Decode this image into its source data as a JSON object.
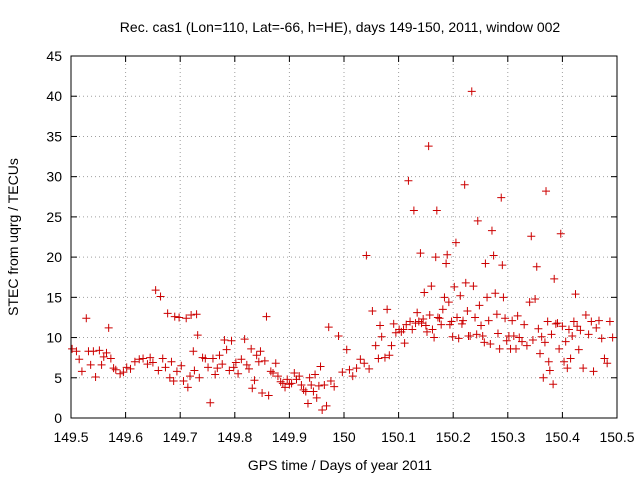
{
  "chart_data": {
    "type": "scatter",
    "title": "Rec. cas1 (Lon=110, Lat=-66, h=HE), days 149-150, 2011, window 002",
    "xlabel": "GPS time / Days of year 2011",
    "ylabel": "STEC from uqrg / TECUs",
    "xlim": [
      149.5,
      150.5
    ],
    "ylim": [
      0,
      45
    ],
    "x_ticks": [
      "149.5",
      "149.6",
      "149.7",
      "149.8",
      "149.9",
      "150",
      "150.1",
      "150.2",
      "150.3",
      "150.4",
      "150.5"
    ],
    "y_ticks": [
      "0",
      "5",
      "10",
      "15",
      "20",
      "25",
      "30",
      "35",
      "40",
      "45"
    ],
    "grid": true,
    "legend": "none",
    "marker": "plus",
    "color": "#cc0000",
    "points": [
      [
        149.502,
        8.6
      ],
      [
        149.51,
        8.3
      ],
      [
        149.515,
        7.3
      ],
      [
        149.52,
        5.8
      ],
      [
        149.528,
        12.4
      ],
      [
        149.532,
        8.3
      ],
      [
        149.536,
        6.6
      ],
      [
        149.541,
        8.3
      ],
      [
        149.545,
        5.1
      ],
      [
        149.552,
        8.4
      ],
      [
        149.556,
        6.6
      ],
      [
        149.56,
        7.6
      ],
      [
        149.565,
        8.1
      ],
      [
        149.569,
        11.2
      ],
      [
        149.573,
        7.4
      ],
      [
        149.578,
        6.2
      ],
      [
        149.582,
        6.0
      ],
      [
        149.59,
        5.5
      ],
      [
        149.596,
        5.7
      ],
      [
        149.602,
        6.3
      ],
      [
        149.609,
        6.1
      ],
      [
        149.617,
        7.0
      ],
      [
        149.625,
        7.3
      ],
      [
        149.632,
        7.4
      ],
      [
        149.64,
        6.7
      ],
      [
        149.645,
        7.5
      ],
      [
        149.65,
        6.9
      ],
      [
        149.655,
        15.9
      ],
      [
        149.66,
        5.9
      ],
      [
        149.664,
        15.1
      ],
      [
        149.668,
        7.4
      ],
      [
        149.673,
        6.3
      ],
      [
        149.677,
        13.0
      ],
      [
        149.681,
        5.0
      ],
      [
        149.684,
        7.0
      ],
      [
        149.688,
        4.6
      ],
      [
        149.69,
        12.6
      ],
      [
        149.694,
        5.8
      ],
      [
        149.698,
        12.5
      ],
      [
        149.702,
        6.5
      ],
      [
        149.706,
        4.6
      ],
      [
        149.711,
        12.4
      ],
      [
        149.714,
        3.8
      ],
      [
        149.718,
        5.2
      ],
      [
        149.72,
        12.8
      ],
      [
        149.724,
        8.3
      ],
      [
        149.726,
        5.9
      ],
      [
        149.73,
        12.9
      ],
      [
        149.732,
        10.3
      ],
      [
        149.735,
        5.0
      ],
      [
        149.741,
        7.5
      ],
      [
        149.746,
        7.4
      ],
      [
        149.751,
        6.3
      ],
      [
        149.755,
        1.9
      ],
      [
        149.76,
        7.4
      ],
      [
        149.764,
        5.4
      ],
      [
        149.768,
        6.2
      ],
      [
        149.772,
        7.8
      ],
      [
        149.777,
        6.7
      ],
      [
        149.781,
        9.7
      ],
      [
        149.785,
        8.5
      ],
      [
        149.79,
        5.9
      ],
      [
        149.794,
        9.6
      ],
      [
        149.798,
        6.3
      ],
      [
        149.802,
        6.9
      ],
      [
        149.806,
        5.5
      ],
      [
        149.812,
        7.3
      ],
      [
        149.818,
        9.8
      ],
      [
        149.822,
        6.6
      ],
      [
        149.826,
        6.1
      ],
      [
        149.83,
        8.6
      ],
      [
        149.832,
        3.7
      ],
      [
        149.836,
        4.7
      ],
      [
        149.84,
        7.8
      ],
      [
        149.844,
        7.0
      ],
      [
        149.847,
        8.3
      ],
      [
        149.85,
        3.1
      ],
      [
        149.855,
        7.1
      ],
      [
        149.858,
        12.6
      ],
      [
        149.862,
        2.8
      ],
      [
        149.866,
        5.8
      ],
      [
        149.87,
        5.6
      ],
      [
        149.875,
        6.8
      ],
      [
        149.879,
        5.2
      ],
      [
        149.884,
        4.5
      ],
      [
        149.888,
        4.3
      ],
      [
        149.892,
        3.8
      ],
      [
        149.896,
        4.8
      ],
      [
        149.9,
        4.2
      ],
      [
        149.904,
        4.3
      ],
      [
        149.909,
        5.6
      ],
      [
        149.913,
        4.8
      ],
      [
        149.918,
        5.2
      ],
      [
        149.922,
        4.1
      ],
      [
        149.926,
        3.5
      ],
      [
        149.93,
        3.3
      ],
      [
        149.934,
        1.8
      ],
      [
        149.937,
        5.0
      ],
      [
        149.94,
        4.1
      ],
      [
        149.944,
        3.3
      ],
      [
        149.947,
        5.4
      ],
      [
        149.95,
        2.5
      ],
      [
        149.954,
        4.0
      ],
      [
        149.957,
        6.4
      ],
      [
        149.96,
        1.0
      ],
      [
        149.964,
        4.1
      ],
      [
        149.968,
        1.5
      ],
      [
        149.972,
        11.3
      ],
      [
        149.976,
        4.6
      ],
      [
        149.982,
        3.9
      ],
      [
        149.99,
        10.2
      ],
      [
        149.997,
        5.7
      ],
      [
        150.005,
        8.5
      ],
      [
        150.01,
        6.0
      ],
      [
        150.016,
        5.2
      ],
      [
        150.023,
        6.2
      ],
      [
        150.03,
        7.3
      ],
      [
        150.037,
        6.8
      ],
      [
        150.041,
        20.2
      ],
      [
        150.046,
        6.1
      ],
      [
        150.052,
        13.3
      ],
      [
        150.058,
        9.0
      ],
      [
        150.063,
        7.4
      ],
      [
        150.066,
        11.5
      ],
      [
        150.069,
        10.1
      ],
      [
        150.075,
        7.5
      ],
      [
        150.079,
        13.5
      ],
      [
        150.083,
        7.8
      ],
      [
        150.087,
        9.0
      ],
      [
        150.091,
        11.7
      ],
      [
        150.095,
        10.6
      ],
      [
        150.101,
        11.0
      ],
      [
        150.105,
        10.7
      ],
      [
        150.109,
        11.0
      ],
      [
        150.111,
        9.3
      ],
      [
        150.114,
        11.6
      ],
      [
        150.118,
        29.5
      ],
      [
        150.121,
        12.0
      ],
      [
        150.125,
        11.0
      ],
      [
        150.128,
        25.8
      ],
      [
        150.131,
        11.8
      ],
      [
        150.134,
        13.1
      ],
      [
        150.137,
        12.0
      ],
      [
        150.14,
        20.5
      ],
      [
        150.142,
        11.8
      ],
      [
        150.145,
        12.3
      ],
      [
        150.147,
        15.6
      ],
      [
        150.15,
        11.5
      ],
      [
        150.152,
        10.7
      ],
      [
        150.155,
        33.8
      ],
      [
        150.157,
        12.8
      ],
      [
        150.16,
        16.4
      ],
      [
        150.162,
        11.0
      ],
      [
        150.165,
        10.0
      ],
      [
        150.168,
        20.0
      ],
      [
        150.17,
        25.8
      ],
      [
        150.172,
        12.5
      ],
      [
        150.175,
        12.4
      ],
      [
        150.178,
        11.6
      ],
      [
        150.181,
        13.5
      ],
      [
        150.184,
        15.0
      ],
      [
        150.187,
        19.2
      ],
      [
        150.189,
        20.3
      ],
      [
        150.192,
        14.4
      ],
      [
        150.194,
        11.6
      ],
      [
        150.197,
        12.0
      ],
      [
        150.199,
        10.1
      ],
      [
        150.202,
        16.3
      ],
      [
        150.205,
        21.8
      ],
      [
        150.207,
        12.5
      ],
      [
        150.21,
        9.9
      ],
      [
        150.213,
        15.2
      ],
      [
        150.216,
        11.7
      ],
      [
        150.218,
        12.1
      ],
      [
        150.221,
        29.0
      ],
      [
        150.223,
        16.8
      ],
      [
        150.226,
        13.3
      ],
      [
        150.228,
        10.2
      ],
      [
        150.231,
        10.2
      ],
      [
        150.234,
        40.6
      ],
      [
        150.237,
        16.4
      ],
      [
        150.24,
        12.5
      ],
      [
        150.243,
        10.4
      ],
      [
        150.245,
        24.5
      ],
      [
        150.248,
        14.0
      ],
      [
        150.251,
        11.5
      ],
      [
        150.254,
        10.2
      ],
      [
        150.257,
        9.4
      ],
      [
        150.259,
        19.2
      ],
      [
        150.262,
        15.0
      ],
      [
        150.265,
        12.1
      ],
      [
        150.268,
        9.2
      ],
      [
        150.271,
        23.3
      ],
      [
        150.274,
        20.2
      ],
      [
        150.277,
        15.5
      ],
      [
        150.28,
        12.9
      ],
      [
        150.282,
        10.5
      ],
      [
        150.285,
        8.6
      ],
      [
        150.288,
        27.4
      ],
      [
        150.29,
        19.0
      ],
      [
        150.292,
        15.0
      ],
      [
        150.295,
        12.4
      ],
      [
        150.298,
        9.6
      ],
      [
        150.302,
        10.2
      ],
      [
        150.305,
        8.6
      ],
      [
        150.308,
        12.1
      ],
      [
        150.311,
        10.2
      ],
      [
        150.315,
        8.6
      ],
      [
        150.318,
        12.7
      ],
      [
        150.321,
        10.0
      ],
      [
        150.326,
        9.5
      ],
      [
        150.33,
        11.6
      ],
      [
        150.335,
        9.0
      ],
      [
        150.34,
        14.4
      ],
      [
        150.343,
        22.6
      ],
      [
        150.346,
        9.7
      ],
      [
        150.35,
        14.8
      ],
      [
        150.353,
        18.8
      ],
      [
        150.356,
        11.1
      ],
      [
        150.359,
        8.0
      ],
      [
        150.362,
        10.1
      ],
      [
        150.365,
        5.0
      ],
      [
        150.368,
        9.4
      ],
      [
        150.37,
        28.2
      ],
      [
        150.373,
        12.0
      ],
      [
        150.375,
        7.0
      ],
      [
        150.377,
        5.9
      ],
      [
        150.38,
        10.4
      ],
      [
        150.383,
        4.2
      ],
      [
        150.385,
        17.3
      ],
      [
        150.388,
        11.7
      ],
      [
        150.391,
        11.8
      ],
      [
        150.394,
        8.6
      ],
      [
        150.397,
        22.9
      ],
      [
        150.4,
        11.4
      ],
      [
        150.403,
        7.0
      ],
      [
        150.406,
        9.5
      ],
      [
        150.409,
        6.2
      ],
      [
        150.412,
        11.0
      ],
      [
        150.415,
        7.4
      ],
      [
        150.418,
        10.2
      ],
      [
        150.421,
        12.0
      ],
      [
        150.424,
        15.4
      ],
      [
        150.427,
        11.4
      ],
      [
        150.43,
        8.5
      ],
      [
        150.433,
        10.9
      ],
      [
        150.438,
        6.2
      ],
      [
        150.443,
        12.8
      ],
      [
        150.448,
        10.4
      ],
      [
        150.453,
        12.0
      ],
      [
        150.457,
        5.8
      ],
      [
        150.462,
        11.2
      ],
      [
        150.467,
        12.1
      ],
      [
        150.472,
        9.9
      ],
      [
        150.477,
        7.4
      ],
      [
        150.482,
        6.8
      ],
      [
        150.487,
        12.0
      ],
      [
        150.492,
        10.0
      ]
    ]
  }
}
